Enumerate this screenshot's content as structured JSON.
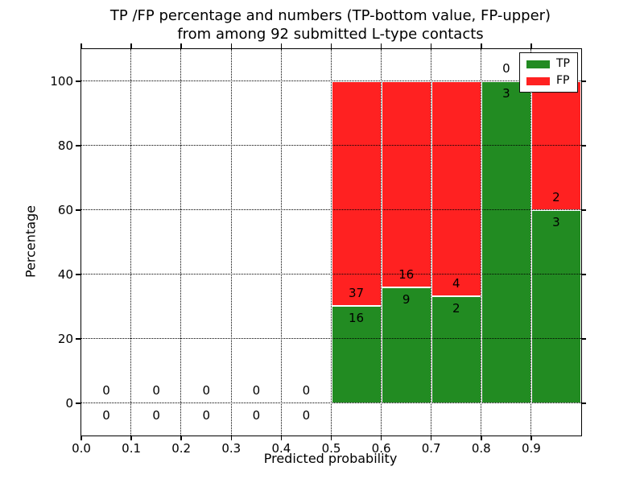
{
  "title": {
    "line1": "TP /FP percentage and numbers (TP-bottom value, FP-upper)",
    "line2": "from among 92 submitted L-type contacts"
  },
  "axes": {
    "xlabel": "Predicted probability",
    "ylabel": "Percentage",
    "xtick_labels": [
      "0.0",
      "0.1",
      "0.2",
      "0.3",
      "0.4",
      "0.5",
      "0.6",
      "0.7",
      "0.8",
      "0.9"
    ],
    "xtick_values": [
      0.0,
      0.1,
      0.2,
      0.3,
      0.4,
      0.5,
      0.6,
      0.7,
      0.8,
      0.9
    ],
    "ytick_labels": [
      "0",
      "20",
      "40",
      "60",
      "80",
      "100"
    ],
    "ytick_values": [
      0,
      20,
      40,
      60,
      80,
      100
    ]
  },
  "legend": {
    "items": [
      {
        "label": "TP",
        "color": "#228B22"
      },
      {
        "label": "FP",
        "color": "#FF2121"
      }
    ]
  },
  "colors": {
    "tp": "#228B22",
    "fp": "#FF2121",
    "grid": "#000000"
  },
  "chart_data": {
    "type": "bar",
    "stacked": true,
    "title": "TP /FP percentage and numbers (TP-bottom value, FP-upper) from among 92 submitted L-type contacts",
    "xlabel": "Predicted probability",
    "ylabel": "Percentage",
    "xlim": [
      0.0,
      1.0
    ],
    "ylim": [
      -10,
      110
    ],
    "grid": true,
    "legend_position": "upper right",
    "bar_total_height_pct": 100,
    "series": [
      {
        "name": "TP",
        "color": "#228B22",
        "position": "bottom"
      },
      {
        "name": "FP",
        "color": "#FF2121",
        "position": "top"
      }
    ],
    "bins": [
      {
        "x0": 0.0,
        "x1": 0.1,
        "tp": 0,
        "fp": 0,
        "tp_pct": 0
      },
      {
        "x0": 0.1,
        "x1": 0.2,
        "tp": 0,
        "fp": 0,
        "tp_pct": 0
      },
      {
        "x0": 0.2,
        "x1": 0.3,
        "tp": 0,
        "fp": 0,
        "tp_pct": 0
      },
      {
        "x0": 0.3,
        "x1": 0.4,
        "tp": 0,
        "fp": 0,
        "tp_pct": 0
      },
      {
        "x0": 0.4,
        "x1": 0.5,
        "tp": 0,
        "fp": 0,
        "tp_pct": 0
      },
      {
        "x0": 0.5,
        "x1": 0.6,
        "tp": 16,
        "fp": 37,
        "tp_pct": 30.19
      },
      {
        "x0": 0.6,
        "x1": 0.7,
        "tp": 9,
        "fp": 16,
        "tp_pct": 36.0
      },
      {
        "x0": 0.7,
        "x1": 0.8,
        "tp": 2,
        "fp": 4,
        "tp_pct": 33.33
      },
      {
        "x0": 0.8,
        "x1": 0.9,
        "tp": 3,
        "fp": 0,
        "tp_pct": 100.0
      },
      {
        "x0": 0.9,
        "x1": 1.0,
        "tp": 3,
        "fp": 2,
        "tp_pct": 60.0
      }
    ]
  }
}
